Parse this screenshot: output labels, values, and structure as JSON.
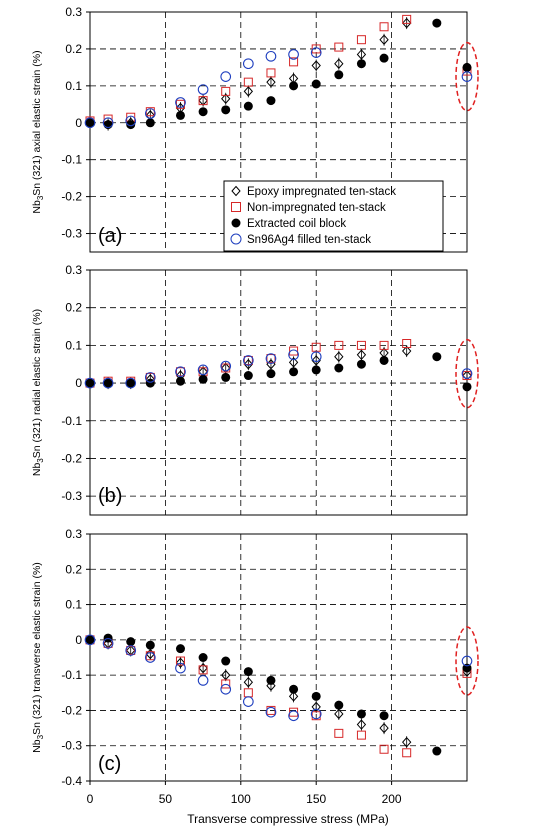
{
  "chart_data": [
    {
      "type": "scatter",
      "panel_label": "(a)",
      "ylabel": "axial elastic strain (%)",
      "ylim": [
        -0.35,
        0.3
      ],
      "yticks": [
        0.3,
        0.2,
        0.1,
        0,
        -0.1,
        -0.2,
        -0.3
      ],
      "xlim": [
        0,
        250
      ],
      "grid": "dashed",
      "legend_position": "bottom-right",
      "series": [
        {
          "name": "Epoxy impregnated ten-stack",
          "marker": "diamond-open",
          "color": "#000000",
          "x": [
            0,
            12,
            27,
            40,
            60,
            75,
            90,
            105,
            120,
            135,
            150,
            165,
            180,
            195,
            210,
            250
          ],
          "y": [
            0.0,
            -0.005,
            0.0,
            0.02,
            0.04,
            0.06,
            0.065,
            0.085,
            0.11,
            0.12,
            0.155,
            0.16,
            0.185,
            0.225,
            0.27,
            0.15
          ]
        },
        {
          "name": "Non-impregnated ten-stack",
          "marker": "square-open",
          "color": "#d62728",
          "x": [
            0,
            12,
            27,
            40,
            60,
            75,
            90,
            105,
            120,
            135,
            150,
            165,
            180,
            195,
            210,
            250
          ],
          "y": [
            0.005,
            0.01,
            0.015,
            0.03,
            0.05,
            0.06,
            0.085,
            0.11,
            0.135,
            0.165,
            0.2,
            0.205,
            0.225,
            0.26,
            0.28,
            0.14
          ]
        },
        {
          "name": "Extracted coil block",
          "marker": "circle-filled",
          "color": "#000000",
          "x": [
            0,
            12,
            27,
            40,
            60,
            75,
            90,
            105,
            120,
            135,
            150,
            165,
            180,
            195,
            230,
            250
          ],
          "y": [
            0.0,
            -0.005,
            -0.005,
            0.0,
            0.02,
            0.03,
            0.035,
            0.045,
            0.06,
            0.1,
            0.105,
            0.13,
            0.16,
            0.175,
            0.27,
            0.15
          ]
        },
        {
          "name": "Sn96Ag4 filled ten-stack",
          "marker": "circle-open",
          "color": "#1f3fbf",
          "x": [
            0,
            12,
            27,
            40,
            60,
            75,
            90,
            105,
            120,
            135,
            150,
            250
          ],
          "y": [
            0.0,
            0.0,
            0.005,
            0.025,
            0.055,
            0.09,
            0.125,
            0.16,
            0.18,
            0.185,
            0.19,
            0.125
          ]
        }
      ]
    },
    {
      "type": "scatter",
      "panel_label": "(b)",
      "ylabel": "radial elastic strain (%)",
      "ylim": [
        -0.35,
        0.3
      ],
      "yticks": [
        0.3,
        0.2,
        0.1,
        0,
        -0.1,
        -0.2,
        -0.3
      ],
      "xlim": [
        0,
        250
      ],
      "grid": "dashed",
      "series": [
        {
          "name": "Epoxy impregnated ten-stack",
          "marker": "diamond-open",
          "color": "#000000",
          "x": [
            0,
            12,
            27,
            40,
            60,
            75,
            90,
            105,
            120,
            135,
            150,
            165,
            180,
            195,
            210,
            250
          ],
          "y": [
            0.0,
            0.0,
            0.0,
            0.01,
            0.02,
            0.03,
            0.04,
            0.05,
            0.05,
            0.055,
            0.06,
            0.07,
            0.075,
            0.08,
            0.085,
            0.02
          ]
        },
        {
          "name": "Non-impregnated ten-stack",
          "marker": "square-open",
          "color": "#d62728",
          "x": [
            0,
            12,
            27,
            40,
            60,
            75,
            90,
            105,
            120,
            135,
            150,
            165,
            180,
            195,
            210,
            250
          ],
          "y": [
            0.0,
            0.005,
            0.005,
            0.015,
            0.03,
            0.03,
            0.04,
            0.06,
            0.065,
            0.085,
            0.095,
            0.1,
            0.1,
            0.1,
            0.105,
            0.02
          ]
        },
        {
          "name": "Extracted coil block",
          "marker": "circle-filled",
          "color": "#000000",
          "x": [
            0,
            12,
            27,
            40,
            60,
            75,
            90,
            105,
            120,
            135,
            150,
            165,
            180,
            195,
            230,
            250
          ],
          "y": [
            0.0,
            0.0,
            0.0,
            0.0,
            0.005,
            0.01,
            0.015,
            0.02,
            0.025,
            0.03,
            0.035,
            0.04,
            0.05,
            0.06,
            0.07,
            -0.01
          ]
        },
        {
          "name": "Sn96Ag4 filled ten-stack",
          "marker": "circle-open",
          "color": "#1f3fbf",
          "x": [
            0,
            12,
            27,
            40,
            60,
            75,
            90,
            105,
            120,
            135,
            150,
            250
          ],
          "y": [
            0.0,
            0.0,
            0.0,
            0.015,
            0.03,
            0.035,
            0.045,
            0.06,
            0.065,
            0.075,
            0.07,
            0.025
          ]
        }
      ]
    },
    {
      "type": "scatter",
      "panel_label": "(c)",
      "ylabel": "transverse elastic strain (%)",
      "xlabel": "Transverse compressive stress (MPa)",
      "ylim": [
        -0.4,
        0.3
      ],
      "yticks": [
        0.3,
        0.2,
        0.1,
        0,
        -0.1,
        -0.2,
        -0.3,
        -0.4
      ],
      "xlim": [
        0,
        250
      ],
      "xticks": [
        0,
        50,
        100,
        150,
        200
      ],
      "grid": "dashed",
      "series": [
        {
          "name": "Epoxy impregnated ten-stack",
          "marker": "diamond-open",
          "color": "#000000",
          "x": [
            0,
            12,
            27,
            40,
            60,
            75,
            90,
            105,
            120,
            135,
            150,
            165,
            180,
            195,
            210,
            250
          ],
          "y": [
            0.0,
            -0.01,
            -0.03,
            -0.04,
            -0.065,
            -0.08,
            -0.1,
            -0.12,
            -0.13,
            -0.16,
            -0.19,
            -0.21,
            -0.24,
            -0.25,
            -0.29,
            -0.09
          ]
        },
        {
          "name": "Non-impregnated ten-stack",
          "marker": "square-open",
          "color": "#d62728",
          "x": [
            0,
            12,
            27,
            40,
            60,
            75,
            90,
            105,
            120,
            135,
            150,
            165,
            180,
            195,
            210,
            250
          ],
          "y": [
            0.0,
            -0.01,
            -0.03,
            -0.045,
            -0.06,
            -0.085,
            -0.125,
            -0.15,
            -0.2,
            -0.205,
            -0.215,
            -0.265,
            -0.27,
            -0.31,
            -0.32,
            -0.095
          ]
        },
        {
          "name": "Extracted coil block",
          "marker": "circle-filled",
          "color": "#000000",
          "x": [
            0,
            12,
            27,
            40,
            60,
            75,
            90,
            105,
            120,
            135,
            150,
            165,
            180,
            195,
            230,
            250
          ],
          "y": [
            0.0,
            0.005,
            -0.005,
            -0.015,
            -0.025,
            -0.05,
            -0.06,
            -0.09,
            -0.115,
            -0.14,
            -0.16,
            -0.185,
            -0.21,
            -0.215,
            -0.315,
            -0.08
          ]
        },
        {
          "name": "Sn96Ag4 filled ten-stack",
          "marker": "circle-open",
          "color": "#1f3fbf",
          "x": [
            0,
            12,
            27,
            40,
            60,
            75,
            90,
            105,
            120,
            135,
            150,
            250
          ],
          "y": [
            0.0,
            -0.01,
            -0.03,
            -0.05,
            -0.08,
            -0.115,
            -0.14,
            -0.175,
            -0.205,
            -0.215,
            -0.21,
            -0.06
          ]
        }
      ]
    }
  ],
  "axis_prefix": "Nb",
  "axis_subscript": "3",
  "axis_suffix": "Sn (321)",
  "highlight_color": "#e02020"
}
